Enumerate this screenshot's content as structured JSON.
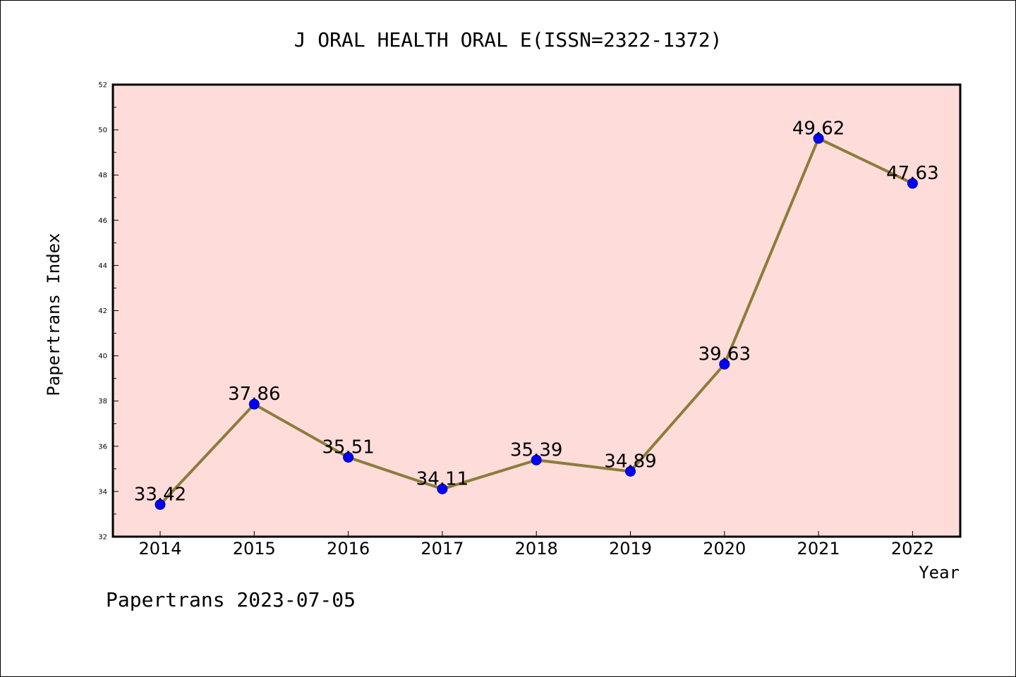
{
  "colors": {
    "plot_background": "#fddcda",
    "line": "#8b7d3a",
    "marker": "#0000ff",
    "marker_edge": "#00008b",
    "axis": "#000000"
  },
  "footer": "Papertrans 2023-07-05",
  "chart_data": {
    "type": "line",
    "title": "J ORAL HEALTH ORAL E(ISSN=2322-1372)",
    "xlabel": "Year",
    "ylabel": "Papertrans Index",
    "categories": [
      "2014",
      "2015",
      "2016",
      "2017",
      "2018",
      "2019",
      "2020",
      "2021",
      "2022"
    ],
    "series": [
      {
        "values": [
          33.42,
          37.86,
          35.51,
          34.11,
          35.39,
          34.89,
          39.63,
          49.62,
          47.63
        ],
        "labels": [
          "33.42",
          "37.86",
          "35.51",
          "34.11",
          "35.39",
          "34.89",
          "39.63",
          "49.62",
          "47.63"
        ]
      }
    ],
    "ylim": [
      32,
      52
    ],
    "yticks": [
      32,
      34,
      36,
      38,
      40,
      42,
      44,
      46,
      48,
      50,
      52
    ],
    "yminor_step": 1,
    "grid": false,
    "legend": "none"
  }
}
